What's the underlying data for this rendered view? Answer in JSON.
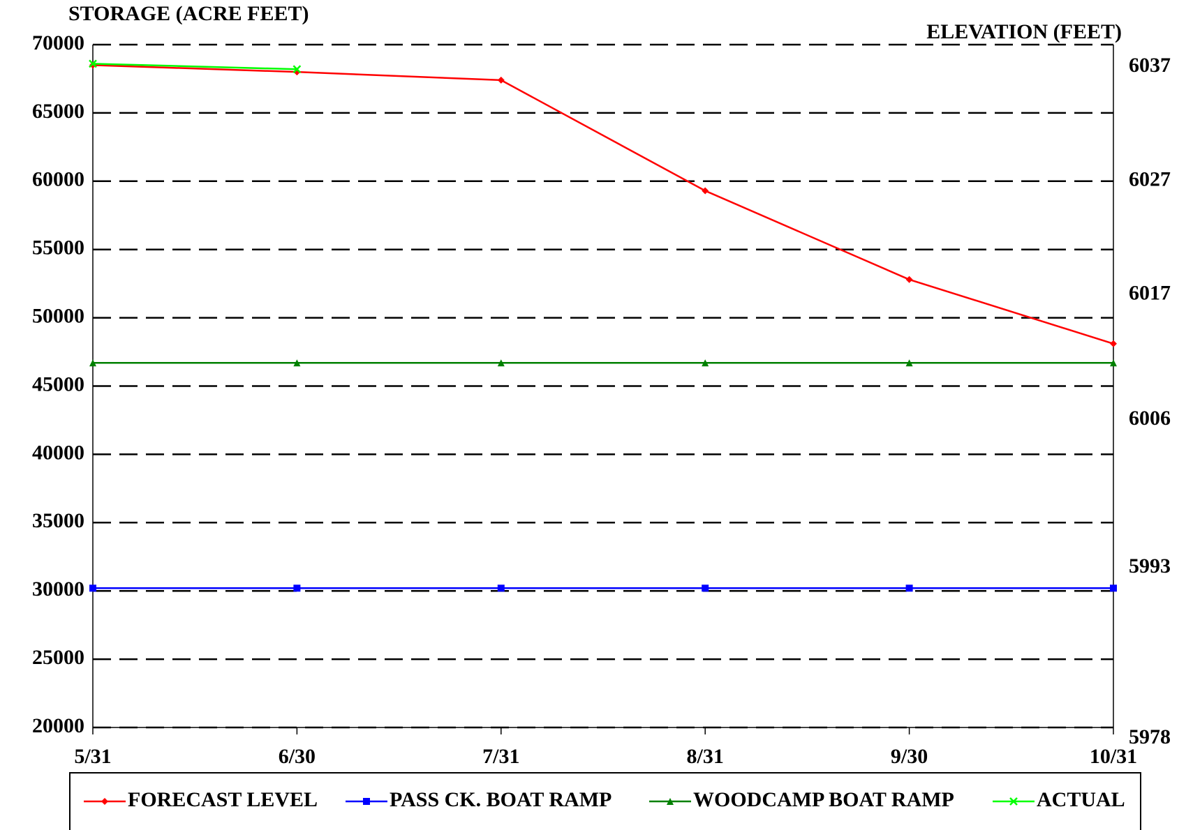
{
  "chart_data": {
    "type": "line",
    "y_label": "STORAGE (ACRE FEET)",
    "y2_label": "ELEVATION (FEET)",
    "categories": [
      "5/31",
      "6/30",
      "7/31",
      "8/31",
      "9/30",
      "10/31"
    ],
    "series": [
      {
        "name": "FORECAST LEVEL",
        "color": "#ff0000",
        "marker": "diamond",
        "values": [
          68500,
          68000,
          67400,
          59300,
          52800,
          48100
        ]
      },
      {
        "name": "PASS CK. BOAT RAMP",
        "color": "#0000ff",
        "marker": "square",
        "values": [
          30200,
          30200,
          30200,
          30200,
          30200,
          30200
        ]
      },
      {
        "name": "WOODCAMP BOAT RAMP",
        "color": "#008000",
        "marker": "triangle",
        "values": [
          46700,
          46700,
          46700,
          46700,
          46700,
          46700
        ]
      },
      {
        "name": "ACTUAL",
        "color": "#00ff00",
        "marker": "x",
        "values": [
          68600,
          68200,
          null,
          null,
          null,
          null
        ]
      }
    ],
    "ylim": [
      20000,
      70000
    ],
    "yticks": [
      20000,
      25000,
      30000,
      35000,
      40000,
      45000,
      50000,
      55000,
      60000,
      65000,
      70000
    ],
    "y2lim": [
      5978,
      6038
    ],
    "y2ticks": [
      5978,
      5993,
      6006,
      6017,
      6027,
      6037
    ],
    "grid": true,
    "legend": "bottom"
  }
}
